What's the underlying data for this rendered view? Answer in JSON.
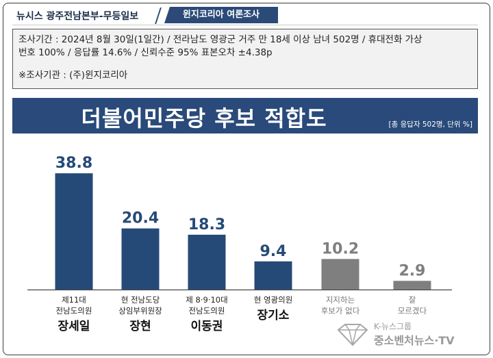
{
  "header": {
    "source": "뉴시스  광주전남본부-무등일보",
    "tag": "윈지코리아  여론조사"
  },
  "info": {
    "line1": "조사기간 : 2024년 8월 30일(1일간) / 전라남도 영광군 거주 만 18세 이상 남녀 502명 / 휴대전화 가상",
    "line2": "번호 100% / 응답률 14.6% / 신뢰수준 95% 표본오차 ±4.38p",
    "line3": "※조사기관 : (주)윈지코리아"
  },
  "chart_data": {
    "type": "bar",
    "title": "더불어민주당 후보 적합도",
    "note": "[총 응답자 502명, 단위 %]",
    "ylim": [
      0,
      45
    ],
    "grid": false,
    "categories": [
      {
        "desc1": "제11대",
        "desc2": "전남도의원",
        "name": "장세일"
      },
      {
        "desc1": "현 전남도당",
        "desc2": "상임부위원장",
        "name": "장현"
      },
      {
        "desc1": "제 8·9·10대",
        "desc2": "전남도의원",
        "name": "이동권"
      },
      {
        "desc1": "현 영광의원",
        "desc2": "",
        "name": "장기소"
      },
      {
        "desc1": "지지하는",
        "desc2": "후보가 없다",
        "name": ""
      },
      {
        "desc1": "잘",
        "desc2": "모르겠다",
        "name": ""
      }
    ],
    "values": [
      38.8,
      20.4,
      18.3,
      9.4,
      10.2,
      2.9
    ],
    "labels": [
      "38.8",
      "20.4",
      "18.3",
      "9.4",
      "10.2",
      "2.9"
    ],
    "colors": [
      "#264a78",
      "#264a78",
      "#264a78",
      "#264a78",
      "#7f7f7f",
      "#7f7f7f"
    ]
  },
  "watermark": {
    "top": "K-뉴스그룹",
    "bottom": "중소벤처뉴스·TV"
  }
}
